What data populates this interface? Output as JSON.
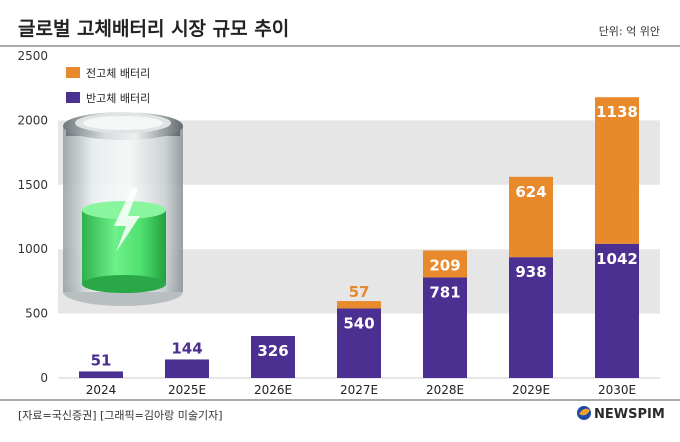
{
  "title": "글로벌 고체배터리 시장 규모 추이",
  "unit": "단위: 억 위안",
  "footer": "[자료=국신증권] [그래픽=김아랑 미술기자]",
  "brand": "NEWSPIM",
  "colors": {
    "solid": "#e8892b",
    "semi": "#4b2f91",
    "band": "#e6e6e6",
    "accent": "#1f4aa8"
  },
  "chart_data": {
    "type": "bar",
    "stacked": true,
    "categories": [
      "2024",
      "2025E",
      "2026E",
      "2027E",
      "2028E",
      "2029E",
      "2030E"
    ],
    "series": [
      {
        "name": "반고체 배터리",
        "values": [
          51,
          144,
          326,
          540,
          781,
          938,
          1042
        ]
      },
      {
        "name": "전고체 배터리",
        "values": [
          0,
          0,
          0,
          57,
          209,
          624,
          1138
        ]
      }
    ],
    "ylim": [
      0,
      2500
    ],
    "yticks": [
      0,
      500,
      1000,
      1500,
      2000,
      2500
    ],
    "legend_position": "top-left",
    "grid": "alternating horizontal bands"
  }
}
